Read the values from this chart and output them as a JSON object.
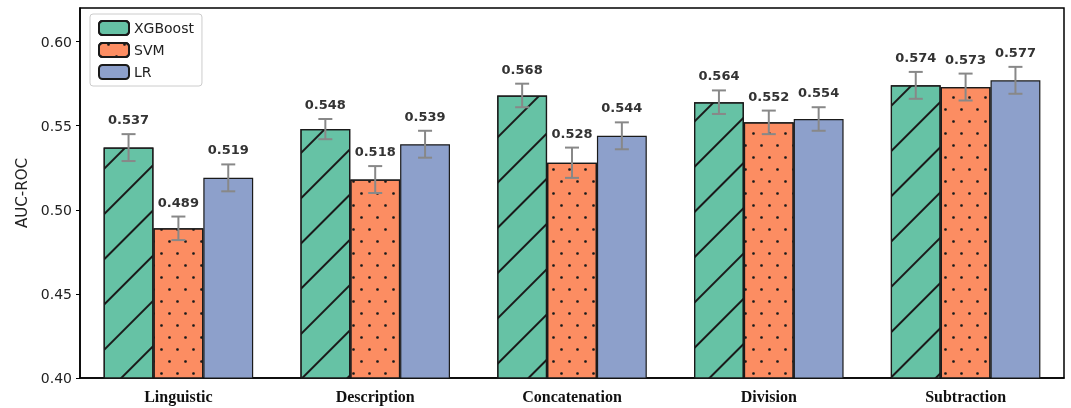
{
  "chart_data": {
    "type": "bar",
    "ylabel": "AUC-ROC",
    "categories": [
      "Linguistic",
      "Description",
      "Concatenation",
      "Division",
      "Subtraction"
    ],
    "series": [
      {
        "name": "XGBoost",
        "color": "#66c2a5",
        "values": [
          0.537,
          0.548,
          0.568,
          0.564,
          0.574
        ],
        "errors": [
          0.008,
          0.006,
          0.007,
          0.007,
          0.008
        ]
      },
      {
        "name": "SVM",
        "color": "#fc8d62",
        "values": [
          0.489,
          0.518,
          0.528,
          0.552,
          0.573
        ],
        "errors": [
          0.007,
          0.008,
          0.009,
          0.007,
          0.008
        ]
      },
      {
        "name": "LR",
        "color": "#8da0cb",
        "values": [
          0.519,
          0.539,
          0.544,
          0.554,
          0.577
        ],
        "errors": [
          0.008,
          0.008,
          0.008,
          0.007,
          0.008
        ]
      }
    ],
    "ylim": [
      0.4,
      0.62
    ],
    "yticks": [
      {
        "value": 0.4,
        "label": "0.40"
      },
      0.45,
      {
        "value": 0.5,
        "label": "0.50"
      },
      0.55,
      {
        "value": 0.6,
        "label": "0.60"
      }
    ],
    "grid": false,
    "legend": "top left",
    "data_labels": true
  }
}
